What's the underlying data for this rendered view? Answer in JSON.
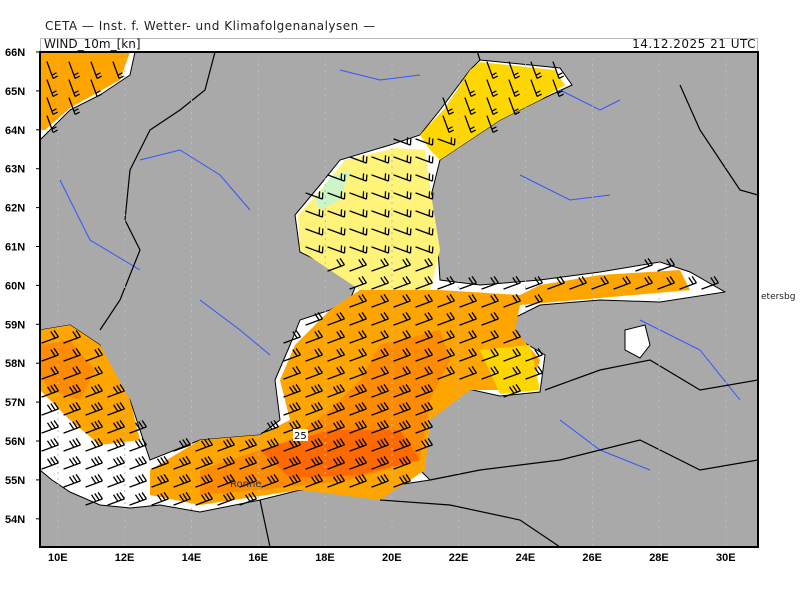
{
  "header": {
    "title": "CETA — Inst. f. Wetter- und Klimafolgenanalysen —",
    "field": "WIND_10m_[kn]",
    "datetime": "14.12.2025 21 UTC"
  },
  "axes": {
    "lat_labels": [
      "66N",
      "65N",
      "64N",
      "63N",
      "62N",
      "61N",
      "60N",
      "59N",
      "58N",
      "57N",
      "56N",
      "55N",
      "54N"
    ],
    "lon_labels": [
      "10E",
      "12E",
      "14E",
      "16E",
      "18E",
      "20E",
      "22E",
      "24E",
      "26E",
      "28E",
      "30E"
    ]
  },
  "map": {
    "place_labels": {
      "st_petersburg": "etersbg",
      "ronne": "Ronne"
    },
    "contour_label": "25",
    "colors": {
      "land": "#a9a9a9",
      "sea": "#ffffff",
      "calm": "#ccf5c8",
      "light_yellow": "#fff37a",
      "yellow": "#ffd700",
      "orange": "#ffa500",
      "dark_orange": "#ff8000",
      "red_orange": "#ff6000",
      "coast": "#000000",
      "rivers": "#3355ff"
    }
  }
}
